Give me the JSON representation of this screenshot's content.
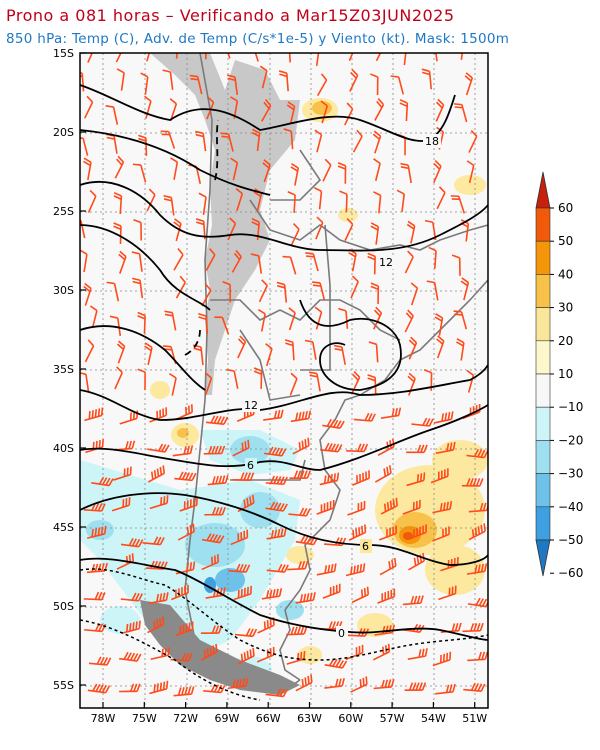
{
  "title": "Prono a 081 horas – Verificando a Mar15Z03JUN2025",
  "subtitle": "850 hPa: Temp (C), Adv. de Temp (C/s*1e-5) y Viento (kt). Mask: 1500m",
  "lat_ticks": [
    "15S",
    "20S",
    "25S",
    "30S",
    "35S",
    "40S",
    "45S",
    "50S",
    "55S"
  ],
  "lon_ticks": [
    "78W",
    "75W",
    "72W",
    "69W",
    "66W",
    "63W",
    "60W",
    "57W",
    "54W",
    "51W"
  ],
  "isotherm_labels": [
    "18",
    "12",
    "12",
    "6",
    "6",
    "0"
  ],
  "colorbar": {
    "labels": [
      "60",
      "50",
      "40",
      "30",
      "20",
      "10",
      "−10",
      "−20",
      "−30",
      "−40",
      "−50",
      "−60"
    ],
    "colors": [
      "#c8200a",
      "#f05a0a",
      "#f5960a",
      "#f8c24a",
      "#fae69a",
      "#fdf8cc",
      "#f7f7f7",
      "#cdf4f7",
      "#9fe0f0",
      "#6ec2ea",
      "#3ea0e0",
      "#1f78c4"
    ]
  },
  "colors": {
    "title": "#c0001a",
    "subtitle": "#1f78c4",
    "mask": "#c8c8c8",
    "barb": "#ff4a1a",
    "contour": "#000000",
    "border": "#7a7a7a"
  }
}
